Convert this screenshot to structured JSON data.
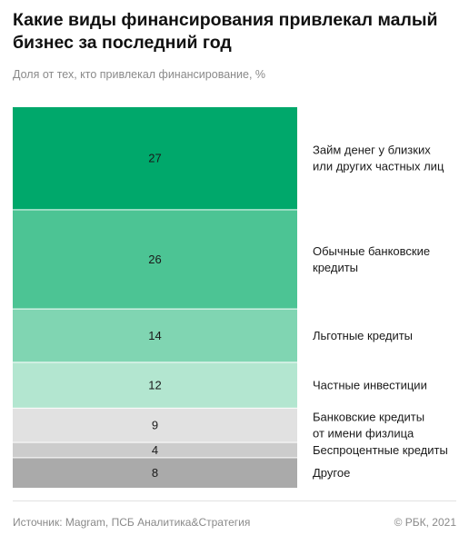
{
  "header": {
    "title": "Какие виды финансирования привлекал малый бизнес за последний год",
    "subtitle": "Доля от тех, кто привлекал финансирование, %"
  },
  "footer": {
    "source": "Источник: Magram, ПСБ Аналитика&Стратегия",
    "copyright": "© РБК, 2021"
  },
  "chart_data": {
    "type": "bar",
    "orientation": "stacked-column",
    "title": "Какие виды финансирования привлекал малый бизнес за последний год",
    "subtitle": "Доля от тех, кто привлекал финансирование, %",
    "categories": [
      [
        "Займ денег у близких",
        "или других частных лиц"
      ],
      [
        "Обычные банковские",
        "кредиты"
      ],
      [
        "Льготные кредиты"
      ],
      [
        "Частные инвестиции"
      ],
      [
        "Банковские кредиты",
        "от имени физлица"
      ],
      [
        "Беспроцентные кредиты"
      ],
      [
        "Другое"
      ]
    ],
    "values": [
      27,
      26,
      14,
      12,
      9,
      4,
      8
    ],
    "colors": [
      "#00a86b",
      "#4cc494",
      "#80d5b2",
      "#b3e6d0",
      "#e1e1e1",
      "#cccccc",
      "#aaaaaa"
    ],
    "grid": false,
    "legend": "right"
  }
}
